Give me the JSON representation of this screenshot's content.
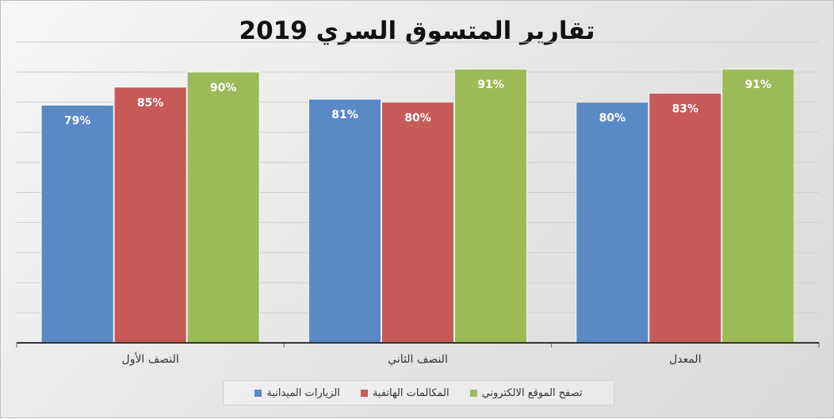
{
  "chart_data": {
    "type": "bar",
    "title": "تقارير المتسوق السري 2019",
    "categories": [
      "النصف الأول",
      "النصف الثاني",
      "المعدل"
    ],
    "series": [
      {
        "name": "الزيارات الميدانية",
        "color": "#5b89c6",
        "values": [
          79,
          81,
          80
        ],
        "labels": [
          "79%",
          "81%",
          "80%"
        ]
      },
      {
        "name": "المكالمات الهاتفية",
        "color": "#c85a58",
        "values": [
          85,
          80,
          83
        ],
        "labels": [
          "85%",
          "80%",
          "83%"
        ]
      },
      {
        "name": "تصفح الموقع الالكتروني",
        "color": "#9bbb59",
        "values": [
          90,
          91,
          91
        ],
        "labels": [
          "90%",
          "91%",
          "91%"
        ]
      }
    ],
    "ylim": [
      0,
      100
    ],
    "grid": true,
    "y_tick_labels_shown": false,
    "legend_position": "bottom"
  }
}
